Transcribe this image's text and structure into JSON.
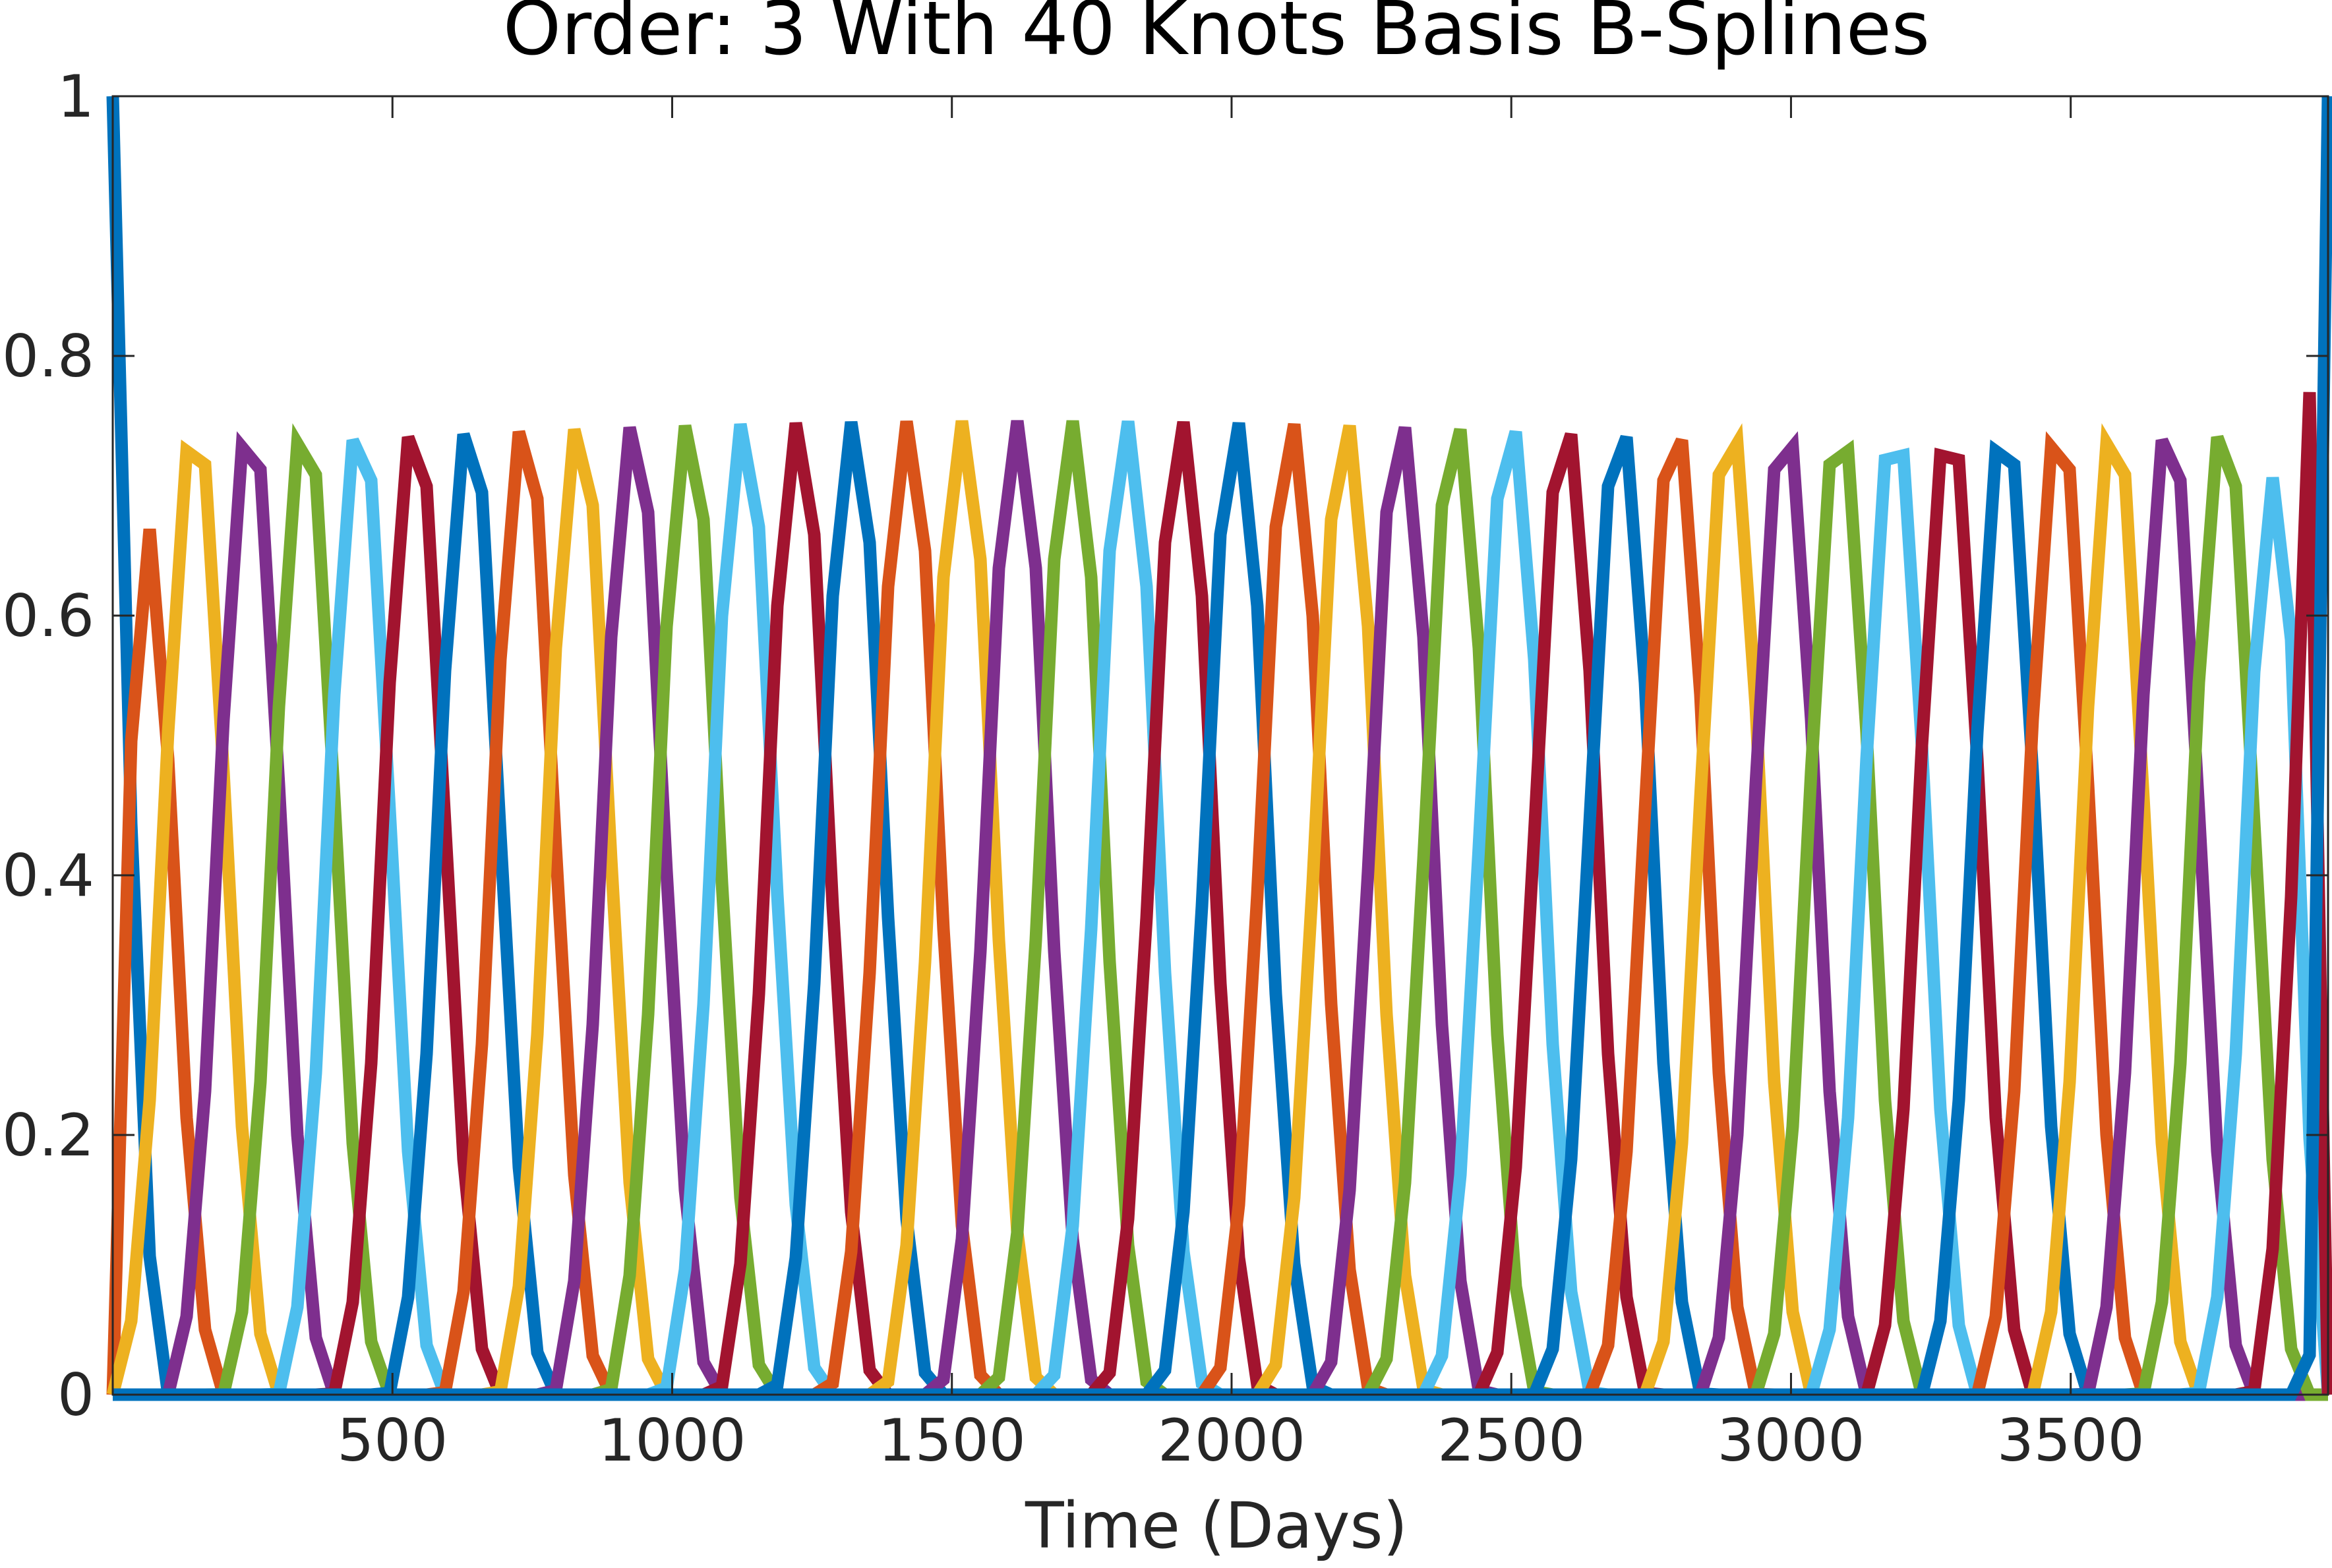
{
  "chart_data": {
    "type": "line",
    "title": "Order: 3 With 40 Knots Basis B-Splines",
    "xlabel": "Time (Days)",
    "ylabel": "",
    "xlim": [
      0,
      3960
    ],
    "ylim": [
      0,
      1
    ],
    "xticks": [
      500,
      1000,
      1500,
      2000,
      2500,
      3000,
      3500
    ],
    "xtick_labels": [
      "500",
      "1000",
      "1500",
      "2000",
      "2500",
      "3000",
      "3500"
    ],
    "yticks": [
      0,
      0.2,
      0.4,
      0.6,
      0.8,
      1
    ],
    "ytick_labels": [
      "0",
      "0.2",
      "0.4",
      "0.6",
      "0.8",
      "1"
    ],
    "grid": false,
    "legend": "none",
    "color_cycle": [
      "#0072BD",
      "#D95319",
      "#EDB120",
      "#7E2F8E",
      "#77AC30",
      "#4DBEEE",
      "#A2142F"
    ],
    "knots": [
      0,
      0,
      0,
      98,
      196,
      294,
      392,
      490,
      588,
      686,
      784,
      882,
      980,
      1078,
      1176,
      1274,
      1372,
      1470,
      1568,
      1666,
      1764,
      1862,
      1960,
      2058,
      2156,
      2254,
      2352,
      2450,
      2548,
      2646,
      2744,
      2842,
      2940,
      3038,
      3136,
      3234,
      3332,
      3430,
      3528,
      3626,
      3724,
      3822,
      3920,
      3960,
      3960,
      3960
    ],
    "sample_interval_days": 33,
    "basis_count": 43,
    "peak_values_observed": {
      "first": 1.0,
      "last": 1.0,
      "interior_max": 0.8,
      "interior_min": 0.68
    }
  }
}
